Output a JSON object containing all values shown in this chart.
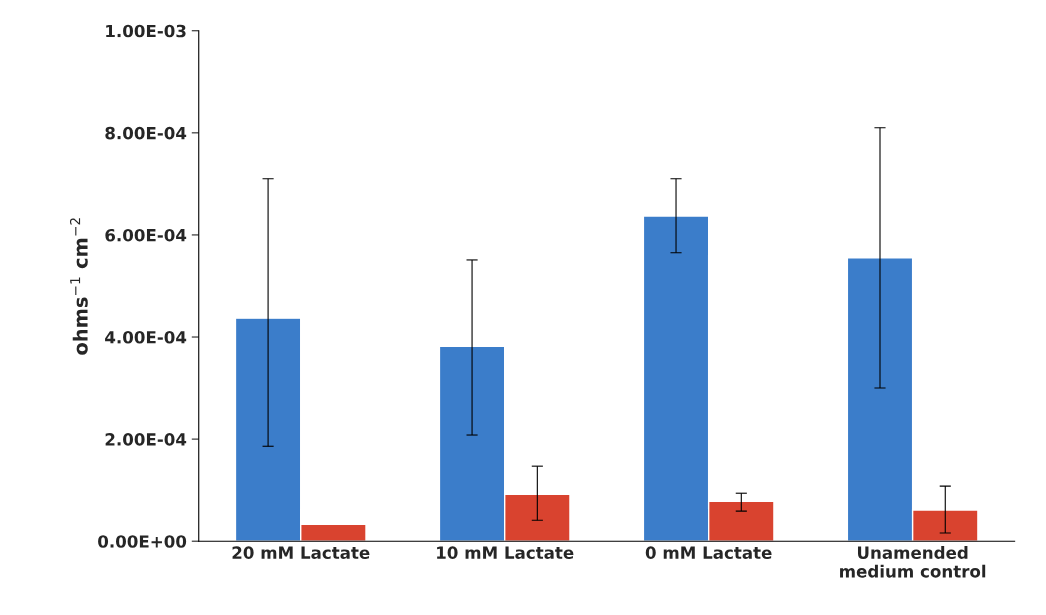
{
  "chart_data": {
    "type": "bar",
    "ylabel": "ohms$^{−1}$ cm$^{−2}$",
    "categories": [
      "20 mM Lactate",
      "10 mM Lactate",
      "0 mM Lactate",
      "Unamended\nmedium control"
    ],
    "series": [
      {
        "color": "#3b7dca",
        "values": [
          0.000437,
          0.000382,
          0.000637,
          0.000555
        ],
        "errors": [
          [
            0.000186,
            0.00071
          ],
          [
            0.000208,
            0.000551
          ],
          [
            0.000565,
            0.00071
          ],
          [
            0.0003,
            0.00081
          ]
        ]
      },
      {
        "color": "#d9432f",
        "values": [
          3.3e-05,
          9.2e-05,
          7.8e-05,
          6.1e-05
        ],
        "errors": [
          null,
          [
            4.1e-05,
            0.000147
          ],
          [
            5.9e-05,
            9.4e-05
          ],
          [
            1.6e-05,
            0.000108
          ]
        ]
      }
    ],
    "ylim": [
      0,
      0.001
    ],
    "yticks": [
      {
        "value": 0,
        "label": "0.00E+00"
      },
      {
        "value": 0.0002,
        "label": "2.00E-04"
      },
      {
        "value": 0.0004,
        "label": "4.00E-04"
      },
      {
        "value": 0.0006,
        "label": "6.00E-04"
      },
      {
        "value": 0.0008,
        "label": "8.00E-04"
      },
      {
        "value": 0.001,
        "label": "1.00E-03"
      }
    ],
    "grid": false,
    "legend": false
  }
}
